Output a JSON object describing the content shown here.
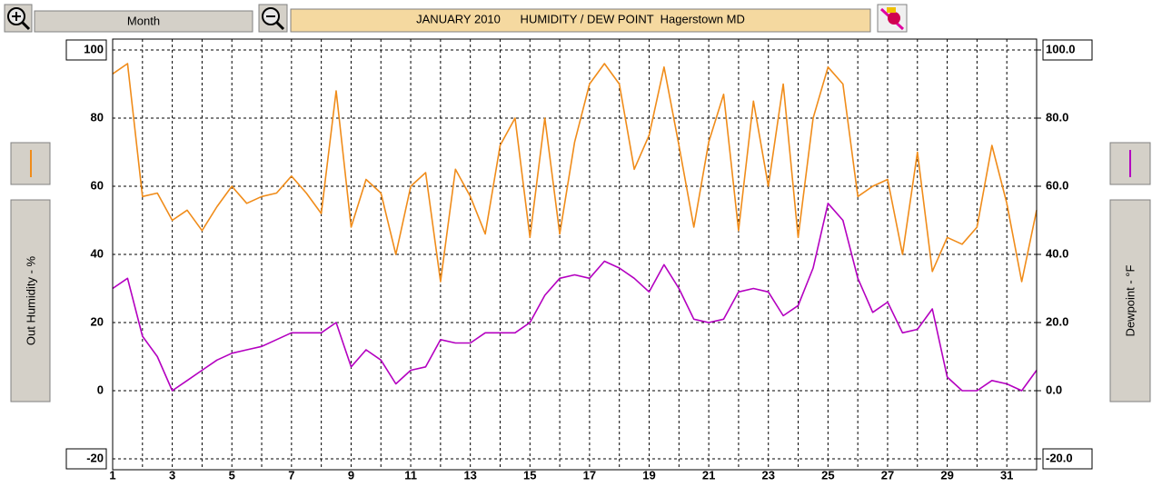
{
  "toolbar": {
    "period": "Month"
  },
  "chart_data": {
    "type": "line",
    "title": "JANUARY 2010      HUMIDITY / DEW POINT  Hagerstown MD",
    "y_label": "Out Humidity - %",
    "y2_label": "Dewpoint - °F",
    "x": [
      1,
      1.5,
      2,
      2.5,
      3,
      3.5,
      4,
      4.5,
      5,
      5.5,
      6,
      6.5,
      7,
      7.5,
      8,
      8.5,
      9,
      9.5,
      10,
      10.5,
      11,
      11.5,
      12,
      12.5,
      13,
      13.5,
      14,
      14.5,
      15,
      15.5,
      16,
      16.5,
      17,
      17.5,
      18,
      18.5,
      19,
      19.5,
      20,
      20.5,
      21,
      21.5,
      22,
      22.5,
      23,
      23.5,
      24,
      24.5,
      25,
      25.5,
      26,
      26.5,
      27,
      27.5,
      28,
      28.5,
      29,
      29.5,
      30,
      30.5,
      31,
      31.5,
      32
    ],
    "series": [
      {
        "color": "#f08c1a",
        "axis": "y",
        "values": [
          93,
          96,
          57,
          58,
          50,
          53,
          47,
          54,
          60,
          55,
          57,
          58,
          63,
          58,
          52,
          88,
          48,
          62,
          58,
          40,
          60,
          64,
          32,
          65,
          57,
          46,
          72,
          80,
          45,
          80,
          46,
          73,
          90,
          96,
          90,
          65,
          75,
          95,
          72,
          48,
          73,
          87,
          47,
          85,
          60,
          90,
          45,
          80,
          95,
          90,
          57,
          60,
          62,
          40,
          70,
          35,
          45,
          43,
          48,
          72,
          55,
          32,
          53
        ]
      },
      {
        "color": "#b400c0",
        "axis": "y2",
        "values": [
          30,
          33,
          16,
          10,
          0,
          3,
          6,
          9,
          11,
          12,
          13,
          15,
          17,
          17,
          17,
          20,
          7,
          12,
          9,
          2,
          6,
          7,
          15,
          14,
          14,
          17,
          17,
          17,
          20,
          28,
          33,
          34,
          33,
          38,
          36,
          33,
          29,
          37,
          30,
          21,
          20,
          21,
          29,
          30,
          29,
          22,
          25,
          36,
          55,
          50,
          33,
          23,
          26,
          17,
          18,
          24,
          4,
          0,
          0,
          3,
          2,
          0,
          6
        ]
      }
    ],
    "xlim": [
      1,
      32
    ],
    "xticks": [
      1,
      3,
      5,
      7,
      9,
      11,
      13,
      15,
      17,
      19,
      21,
      23,
      25,
      27,
      29,
      31
    ],
    "xminor_ticks": [
      2,
      4,
      6,
      8,
      10,
      12,
      14,
      16,
      18,
      20,
      22,
      24,
      26,
      28,
      30
    ],
    "ylim": [
      -23.2,
      103.2
    ],
    "yticks": [
      100,
      80,
      60,
      40,
      20,
      0,
      -20
    ],
    "y2lim": [
      -23.2,
      103.2
    ],
    "y2ticks": [
      {
        "value": 100,
        "label": "100.0"
      },
      {
        "value": 80,
        "label": "80.0"
      },
      {
        "value": 60,
        "label": "60.0"
      },
      {
        "value": 40,
        "label": "40.0"
      },
      {
        "value": 20,
        "label": "20.0"
      },
      {
        "value": 0,
        "label": "0.0"
      },
      {
        "value": -20,
        "label": "-20.0"
      }
    ],
    "grid": true
  }
}
